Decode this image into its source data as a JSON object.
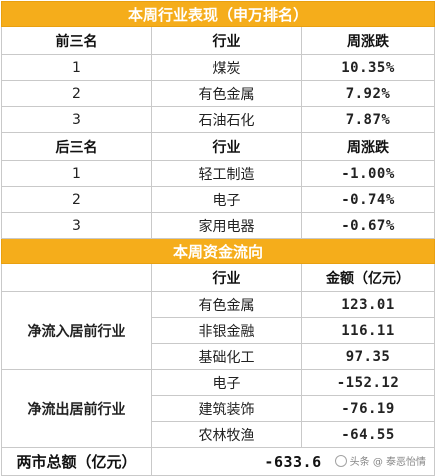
{
  "section1": {
    "title": "本周行业表现（申万排名）",
    "top_header": [
      "前三名",
      "行业",
      "周涨跌"
    ],
    "top": [
      {
        "rank": "1",
        "industry": "煤炭",
        "change": "10.35%"
      },
      {
        "rank": "2",
        "industry": "有色金属",
        "change": "7.92%"
      },
      {
        "rank": "3",
        "industry": "石油石化",
        "change": "7.87%"
      }
    ],
    "bottom_header": [
      "后三名",
      "行业",
      "周涨跌"
    ],
    "bottom": [
      {
        "rank": "1",
        "industry": "轻工制造",
        "change": "-1.00%"
      },
      {
        "rank": "2",
        "industry": "电子",
        "change": "-0.74%"
      },
      {
        "rank": "3",
        "industry": "家用电器",
        "change": "-0.67%"
      }
    ]
  },
  "section2": {
    "title": "本周资金流向",
    "header": [
      "",
      "行业",
      "金额（亿元）"
    ],
    "inflow_label": "净流入居前行业",
    "inflow": [
      {
        "industry": "有色金属",
        "amount": "123.01"
      },
      {
        "industry": "非银金融",
        "amount": "116.11"
      },
      {
        "industry": "基础化工",
        "amount": "97.35"
      }
    ],
    "outflow_label": "净流出居前行业",
    "outflow": [
      {
        "industry": "电子",
        "amount": "-152.12"
      },
      {
        "industry": "建筑装饰",
        "amount": "-76.19"
      },
      {
        "industry": "农林牧渔",
        "amount": "-64.55"
      }
    ],
    "total_label": "两市总额（亿元）",
    "total_value": "-633.6"
  },
  "watermark": "头条 @ 泰恶怡情",
  "colors": {
    "title_bg": "#f5ad1b",
    "positive": "#d22a2a",
    "negative": "#1f8f2f"
  }
}
